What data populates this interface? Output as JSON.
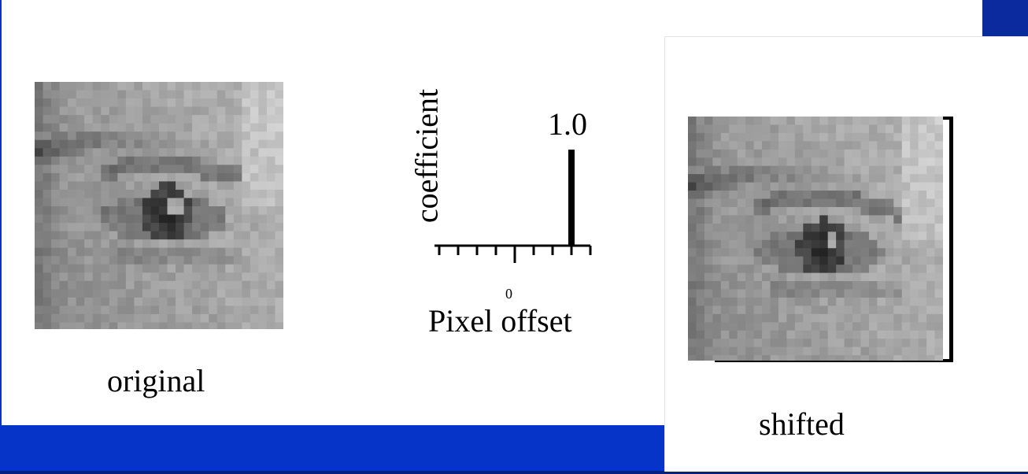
{
  "captions": {
    "original": "original",
    "shifted": "shifted"
  },
  "filter_plot": {
    "y_axis_label": "coefficient",
    "x_axis_label": "Pixel offset",
    "zero_tick_label": "0",
    "impulse_value_label": "1.0",
    "impulse_offset": 3,
    "impulse_coefficient": 1.0,
    "offset_range": [
      -4,
      4
    ]
  },
  "colors": {
    "accent_blue": "#0734c8",
    "dark_blue": "#0a2a9e"
  }
}
